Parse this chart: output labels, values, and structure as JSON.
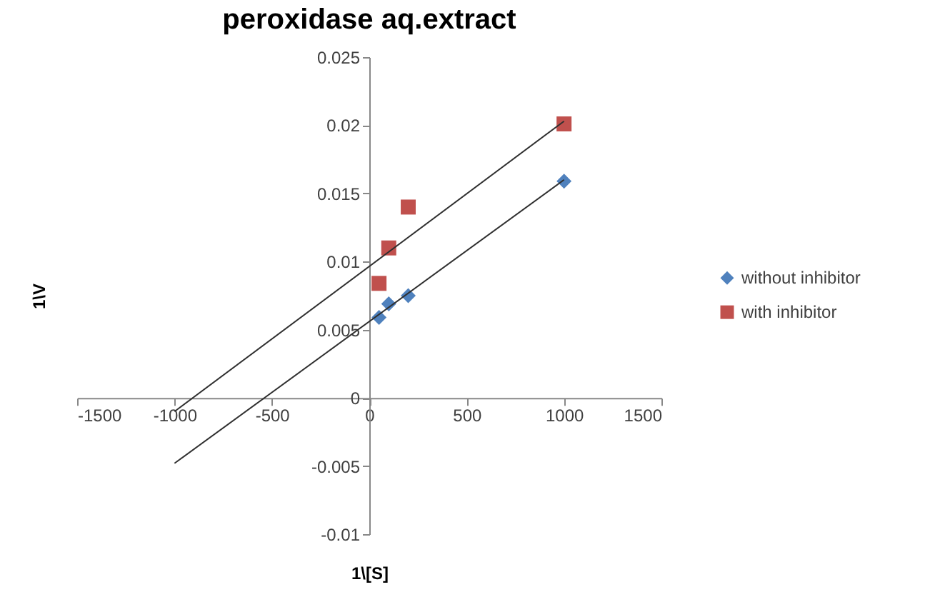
{
  "chart_data": {
    "type": "scatter",
    "title": "peroxidase aq.extract",
    "xlabel": "1\\[S]",
    "ylabel": "1\\V",
    "xlim": [
      -1500,
      1500
    ],
    "xticks": [
      -1500,
      -1000,
      -500,
      0,
      500,
      1000,
      1500
    ],
    "ylim": [
      -0.01,
      0.025
    ],
    "yticks": [
      -0.01,
      -0.005,
      0,
      0.005,
      0.01,
      0.015,
      0.02,
      0.025
    ],
    "grid": false,
    "legend": "right",
    "series": [
      {
        "name": "without inhibitor",
        "type": "scatter",
        "marker": "diamond",
        "color": "#4f81bd",
        "x": [
          50,
          100,
          200,
          1000
        ],
        "values": [
          0.0059,
          0.0069,
          0.0075,
          0.0159
        ]
      },
      {
        "name": "with inhibitor",
        "type": "scatter",
        "marker": "square",
        "color": "#c0504d",
        "x": [
          50,
          100,
          200,
          1000
        ],
        "values": [
          0.0084,
          0.011,
          0.014,
          0.0201
        ]
      },
      {
        "type": "line",
        "color": "#303030",
        "marker": "none",
        "x": [
          -1000,
          1000
        ],
        "values": [
          -0.0048,
          0.016
        ]
      },
      {
        "type": "line",
        "color": "#303030",
        "marker": "none",
        "x": [
          -1000,
          1000
        ],
        "values": [
          -0.001,
          0.0203
        ]
      }
    ]
  }
}
